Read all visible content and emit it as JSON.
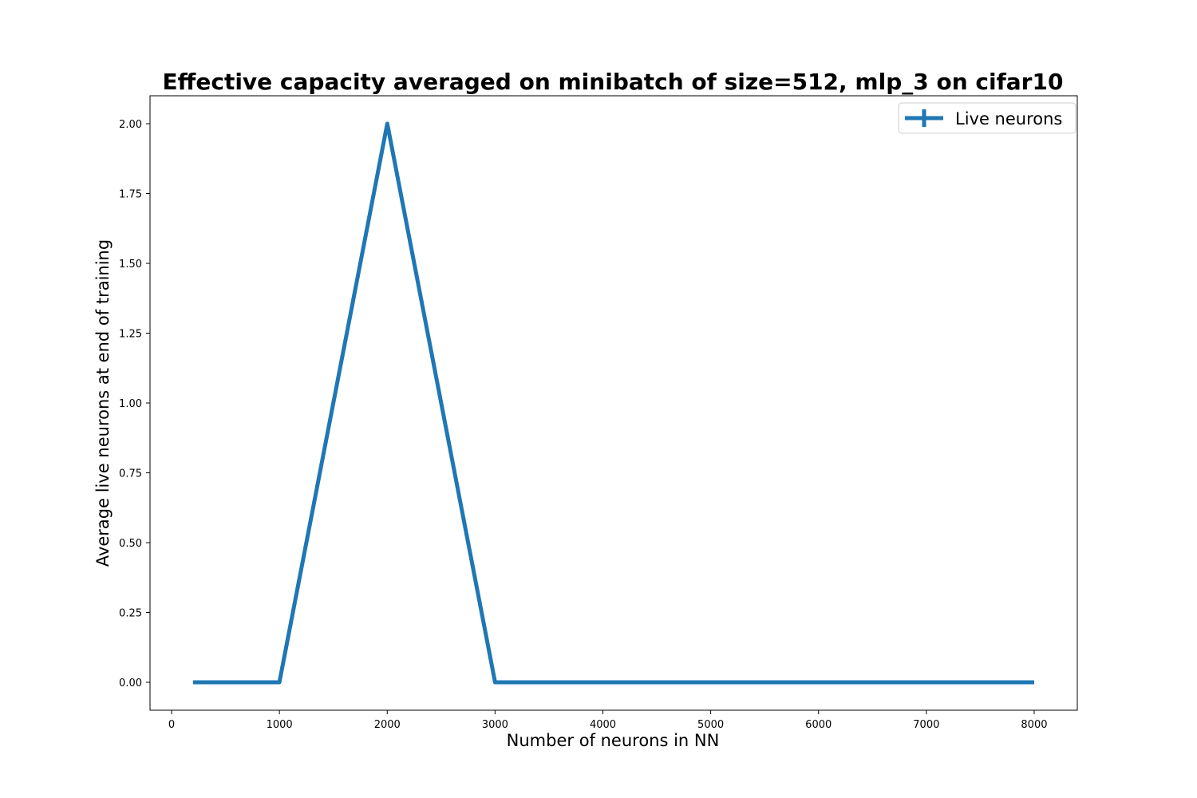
{
  "chart_data": {
    "type": "line",
    "title": "Effective capacity averaged on minibatch of size=512, mlp_3 on cifar10",
    "xlabel": "Number of neurons in NN",
    "ylabel": "Average live neurons at end of training",
    "xlim": [
      -200,
      8400
    ],
    "ylim": [
      -0.1,
      2.1
    ],
    "xticks": [
      0,
      1000,
      2000,
      3000,
      4000,
      5000,
      6000,
      7000,
      8000
    ],
    "xtick_labels": [
      "0",
      "1000",
      "2000",
      "3000",
      "4000",
      "5000",
      "6000",
      "7000",
      "8000"
    ],
    "yticks": [
      0.0,
      0.25,
      0.5,
      0.75,
      1.0,
      1.25,
      1.5,
      1.75,
      2.0
    ],
    "ytick_labels": [
      "0.00",
      "0.25",
      "0.50",
      "0.75",
      "1.00",
      "1.25",
      "1.50",
      "1.75",
      "2.00"
    ],
    "grid": false,
    "legend_position": "top-right",
    "series": [
      {
        "name": "Live neurons",
        "color": "#1f77b4",
        "x": [
          200,
          1000,
          2000,
          3000,
          4000,
          5000,
          6000,
          7000,
          8000
        ],
        "y": [
          0,
          0,
          2,
          0,
          0,
          0,
          0,
          0,
          0
        ]
      }
    ]
  }
}
